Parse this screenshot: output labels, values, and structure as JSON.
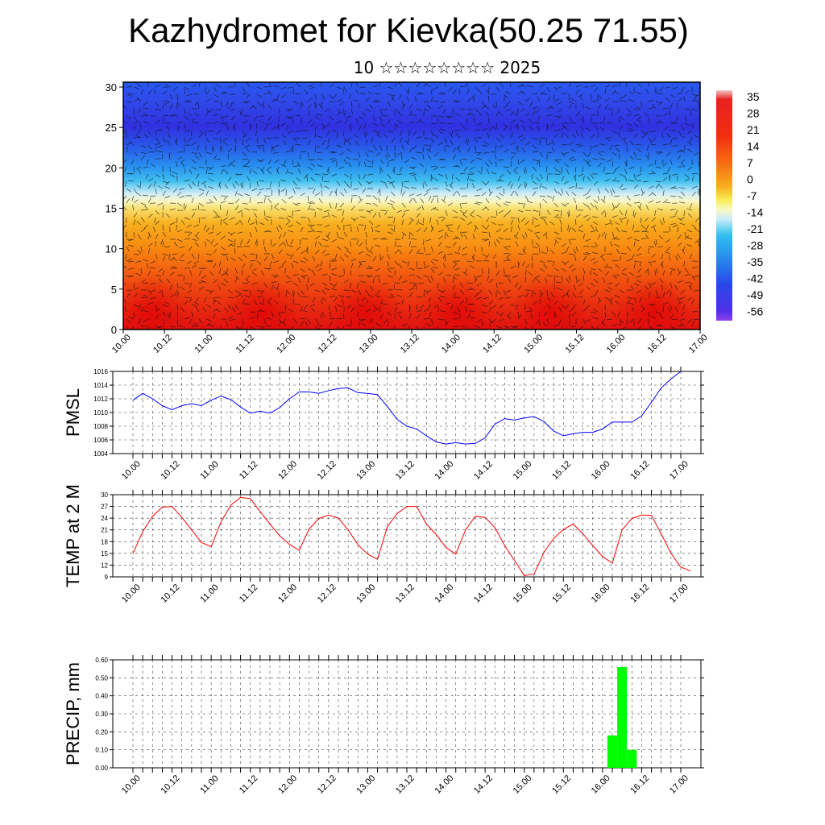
{
  "title": "Kazhydromet for Kievka(50.25 71.55)",
  "subtitle": "10 ☆☆☆☆☆☆☆☆ 2025",
  "chart_data": [
    {
      "type": "heatmap",
      "panel": "temperature-cross-section",
      "x_ticks": [
        "10.00",
        "10.12",
        "11.00",
        "11.12",
        "12.00",
        "12.12",
        "13.00",
        "13.12",
        "14.00",
        "14.12",
        "15.00",
        "15.12",
        "16.00",
        "16.12",
        "17.00"
      ],
      "y_ticks": [
        "0",
        "5",
        "10",
        "15",
        "20",
        "25",
        "30"
      ],
      "ylim": [
        0,
        30.6
      ],
      "colorbar_labels": [
        "35",
        "28",
        "21",
        "14",
        "7",
        "0",
        "-7",
        "-14",
        "-21",
        "-28",
        "-35",
        "-42",
        "-49",
        "-56"
      ],
      "wind_barbs": true,
      "colors": {
        "warm": "#e8140c",
        "mid": "#f8a018",
        "neutral": "#f8f4b0",
        "cool": "#28b8f0",
        "cold": "#3c30e8",
        "coldest": "#8a38e8"
      }
    },
    {
      "type": "line",
      "panel": "pmsl",
      "ylabel": "PMSL",
      "y_ticks": [
        "1004",
        "1006",
        "1008",
        "1010",
        "1012",
        "1014",
        "1016"
      ],
      "ylim": [
        1004,
        1016
      ],
      "x_ticks": [
        "10.00",
        "10.12",
        "11.00",
        "11.12",
        "12.00",
        "12.12",
        "13.00",
        "13.12",
        "14.00",
        "14.12",
        "15.00",
        "15.12",
        "16.00",
        "16.12",
        "17.00"
      ],
      "x_step_hours": 3,
      "values": [
        1011.8,
        1012.8,
        1012.0,
        1011.0,
        1010.4,
        1011.0,
        1011.3,
        1011.0,
        1011.8,
        1012.4,
        1011.9,
        1010.8,
        1009.9,
        1010.2,
        1009.9,
        1010.7,
        1012.0,
        1013.0,
        1013.0,
        1012.8,
        1013.2,
        1013.5,
        1013.6,
        1012.9,
        1012.8,
        1012.6,
        1010.9,
        1009.0,
        1008.0,
        1007.6,
        1006.6,
        1005.7,
        1005.4,
        1005.6,
        1005.4,
        1005.5,
        1006.3,
        1008.3,
        1009.1,
        1008.9,
        1009.2,
        1009.4,
        1008.7,
        1007.3,
        1006.6,
        1006.9,
        1007.1,
        1007.1,
        1007.6,
        1008.6,
        1008.6,
        1008.6,
        1009.5,
        1011.5,
        1013.6,
        1014.9,
        1016.0
      ],
      "color": "#0000ff"
    },
    {
      "type": "line",
      "panel": "temp-2m",
      "ylabel": "TEMP at 2 M",
      "y_ticks": [
        "9",
        "12",
        "15",
        "18",
        "21",
        "24",
        "27",
        "30"
      ],
      "ylim": [
        9,
        30
      ],
      "x_ticks": [
        "10.00",
        "10.12",
        "11.00",
        "11.12",
        "12.00",
        "12.12",
        "13.00",
        "13.12",
        "14.00",
        "14.12",
        "15.00",
        "15.12",
        "16.00",
        "16.12",
        "17.00"
      ],
      "x_step_hours": 3,
      "values": [
        15.0,
        20.5,
        24.5,
        26.8,
        27.0,
        24.2,
        21.0,
        17.8,
        16.7,
        23.0,
        27.3,
        29.3,
        29.0,
        25.7,
        22.5,
        19.5,
        17.3,
        15.8,
        21.2,
        23.9,
        24.8,
        24.0,
        21.0,
        17.2,
        14.8,
        13.5,
        21.8,
        25.2,
        27.0,
        27.0,
        22.5,
        19.8,
        16.5,
        14.8,
        21.0,
        24.5,
        24.2,
        21.6,
        17.0,
        13.2,
        9.3,
        9.7,
        15.2,
        18.8,
        21.1,
        22.5,
        20.0,
        17.0,
        14.2,
        12.5,
        21.0,
        23.9,
        24.8,
        24.7,
        20.0,
        15.0,
        11.5,
        10.5
      ],
      "color": "#ff0000"
    },
    {
      "type": "bar",
      "panel": "precip",
      "ylabel": "PRECIP, mm",
      "y_ticks": [
        "0.00",
        "0.10",
        "0.20",
        "0.30",
        "0.40",
        "0.50",
        "0.60"
      ],
      "ylim": [
        0,
        0.6
      ],
      "x_ticks": [
        "10.00",
        "10.12",
        "11.00",
        "11.12",
        "12.00",
        "12.12",
        "13.00",
        "13.12",
        "14.00",
        "14.12",
        "15.00",
        "15.12",
        "16.00",
        "16.12",
        "17.00"
      ],
      "x_step_hours": 3,
      "bars": [
        {
          "x_hours": 147,
          "value": 0.18
        },
        {
          "x_hours": 150,
          "value": 0.56
        },
        {
          "x_hours": 153,
          "value": 0.1
        }
      ],
      "color": "#00ff00"
    }
  ]
}
